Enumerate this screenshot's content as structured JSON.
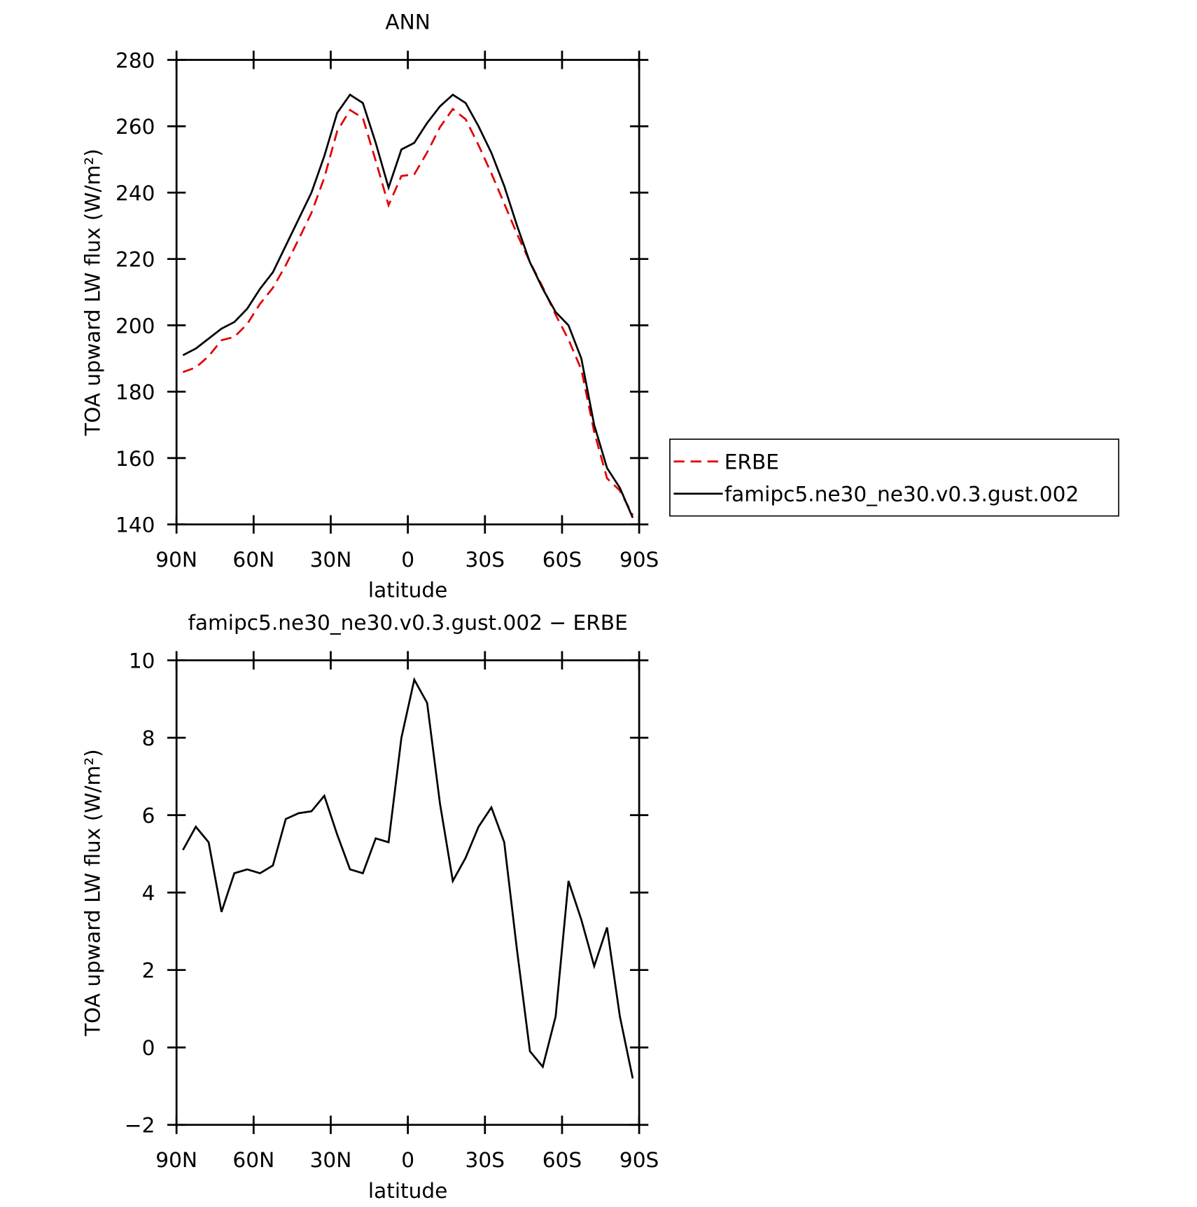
{
  "chart_data": [
    {
      "type": "line",
      "title": "ANN",
      "xlabel": "latitude",
      "ylabel": "TOA upward LW flux (W/m²)",
      "x": [
        87.5,
        82.5,
        77.5,
        72.5,
        67.5,
        62.5,
        57.5,
        52.5,
        47.5,
        42.5,
        37.5,
        32.5,
        27.5,
        22.5,
        17.5,
        12.5,
        7.5,
        2.5,
        -2.5,
        -7.5,
        -12.5,
        -17.5,
        -22.5,
        -27.5,
        -32.5,
        -37.5,
        -42.5,
        -47.5,
        -52.5,
        -57.5,
        -62.5,
        -67.5,
        -72.5,
        -77.5,
        -82.5,
        -87.5
      ],
      "xlim": [
        90,
        -90
      ],
      "xticks": [
        {
          "value": 90,
          "label": "90N"
        },
        {
          "value": 60,
          "label": "60N"
        },
        {
          "value": 30,
          "label": "30N"
        },
        0,
        {
          "value": -30,
          "label": "30S"
        },
        {
          "value": -60,
          "label": "60S"
        },
        {
          "value": -90,
          "label": "90S"
        }
      ],
      "ylim": [
        140,
        280
      ],
      "yticks": [
        140,
        160,
        180,
        200,
        220,
        240,
        260,
        280
      ],
      "series": [
        {
          "name": "ERBE",
          "color": "#e00000",
          "dashed": true,
          "values": [
            185.9,
            187.3,
            190.7,
            195.5,
            196.5,
            200.4,
            206.5,
            211.3,
            218.1,
            225.9,
            233.9,
            244.5,
            258.5,
            264.9,
            262.5,
            249.6,
            236.2,
            245,
            245.5,
            252.1,
            259.7,
            265.2,
            262.1,
            254.3,
            245.8,
            236.7,
            227.5,
            219.1,
            211.5,
            203.2,
            195.7,
            186.7,
            167.9,
            153.9,
            150.2,
            142.8
          ]
        },
        {
          "name": "famipc5.ne30_ne30.v0.3.gust.002",
          "color": "#000000",
          "dashed": false,
          "values": [
            191,
            193,
            196,
            199,
            201,
            205,
            211,
            216,
            224,
            232,
            240,
            251,
            264,
            269.5,
            267,
            255,
            241.5,
            253,
            255,
            261,
            266,
            269.5,
            267,
            260,
            252,
            242,
            230,
            219,
            211,
            204,
            200,
            190,
            170,
            157,
            151,
            142
          ]
        }
      ]
    },
    {
      "type": "line",
      "title": "famipc5.ne30_ne30.v0.3.gust.002 − ERBE",
      "xlabel": "latitude",
      "ylabel": "TOA upward LW flux (W/m²)",
      "x": [
        87.5,
        82.5,
        77.5,
        72.5,
        67.5,
        62.5,
        57.5,
        52.5,
        47.5,
        42.5,
        37.5,
        32.5,
        27.5,
        22.5,
        17.5,
        12.5,
        7.5,
        2.5,
        -2.5,
        -7.5,
        -12.5,
        -17.5,
        -22.5,
        -27.5,
        -32.5,
        -37.5,
        -42.5,
        -47.5,
        -52.5,
        -57.5,
        -62.5,
        -67.5,
        -72.5,
        -77.5,
        -82.5,
        -87.5
      ],
      "xlim": [
        90,
        -90
      ],
      "xticks": [
        {
          "value": 90,
          "label": "90N"
        },
        {
          "value": 60,
          "label": "60N"
        },
        {
          "value": 30,
          "label": "30N"
        },
        0,
        {
          "value": -30,
          "label": "30S"
        },
        {
          "value": -60,
          "label": "60S"
        },
        {
          "value": -90,
          "label": "90S"
        }
      ],
      "ylim": [
        -2,
        10
      ],
      "yticks": [
        {
          "value": -2,
          "label": "−2"
        },
        0,
        2,
        4,
        6,
        8,
        10
      ],
      "series": [
        {
          "color": "#000000",
          "dashed": false,
          "values": [
            5.1,
            5.7,
            5.3,
            3.5,
            4.5,
            4.6,
            4.5,
            4.7,
            5.9,
            6.05,
            6.1,
            6.5,
            5.5,
            4.6,
            4.5,
            5.4,
            5.3,
            8.0,
            9.5,
            8.9,
            6.3,
            4.3,
            4.9,
            5.7,
            6.2,
            5.3,
            2.5,
            -0.1,
            -0.5,
            0.8,
            4.3,
            3.3,
            2.1,
            3.1,
            0.8,
            -0.8
          ]
        }
      ]
    }
  ]
}
